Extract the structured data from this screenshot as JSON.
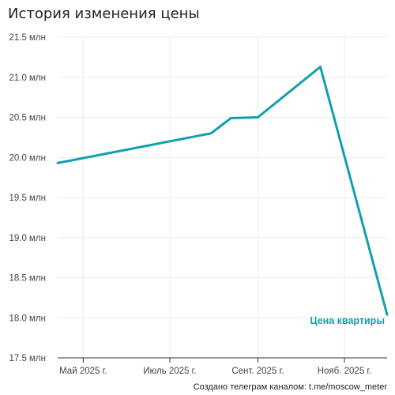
{
  "title": "История изменения цены",
  "credit": "Создано телеграм каналом: t.me/moscow_meter",
  "chart_data": {
    "type": "line",
    "title": "История изменения цены",
    "xlabel": "",
    "ylabel": "",
    "grid": true,
    "line_color": "#139fad",
    "ylim": [
      17.5,
      21.5
    ],
    "xlim": [
      "2025-04-13",
      "2025-12-01"
    ],
    "yticks": [
      {
        "value": 21.5,
        "label": "21.5 млн"
      },
      {
        "value": 21.0,
        "label": "21.0 млн"
      },
      {
        "value": 20.5,
        "label": "20.5 млн"
      },
      {
        "value": 20.0,
        "label": "20.0 млн"
      },
      {
        "value": 19.5,
        "label": "19.5 млн"
      },
      {
        "value": 19.0,
        "label": "19.0 млн"
      },
      {
        "value": 18.5,
        "label": "18.5 млн"
      },
      {
        "value": 18.0,
        "label": "18.0 млн"
      },
      {
        "value": 17.5,
        "label": "17.5 млн"
      }
    ],
    "xticks": [
      {
        "value": "2025-05-01",
        "label": "Май 2025 г."
      },
      {
        "value": "2025-07-01",
        "label": "Июль 2025 г."
      },
      {
        "value": "2025-09-01",
        "label": "Сент. 2025 г."
      },
      {
        "value": "2025-11-01",
        "label": "Нояб. 2025 г."
      }
    ],
    "series": [
      {
        "name": "Цена квартиры",
        "x": [
          "2025-04-13",
          "2025-07-30",
          "2025-08-13",
          "2025-09-01",
          "2025-10-15",
          "2025-12-01"
        ],
        "values": [
          19.93,
          20.3,
          20.49,
          20.5,
          21.13,
          18.04
        ]
      }
    ]
  }
}
